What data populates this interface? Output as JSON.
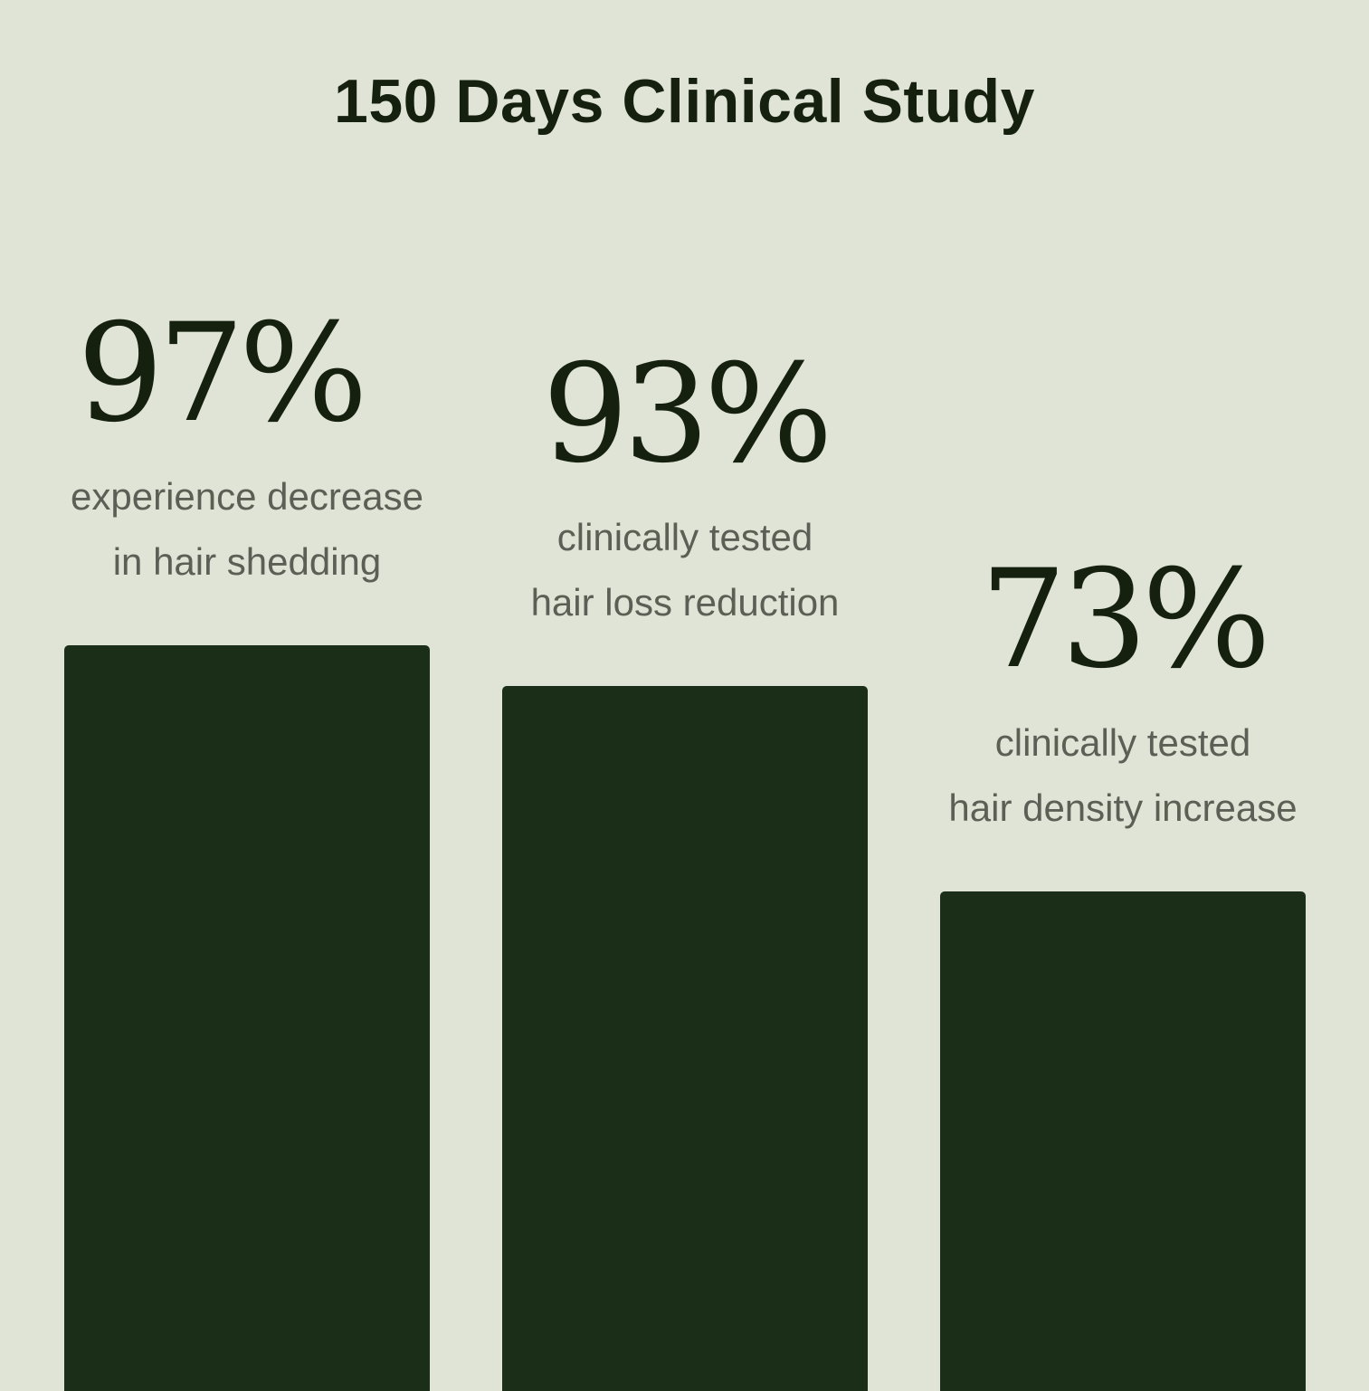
{
  "chart_data": {
    "type": "bar",
    "title": "150 Days Clinical Study",
    "categories": [
      [
        "experience decrease",
        "in hair shedding"
      ],
      [
        "clinically tested",
        "hair loss reduction"
      ],
      [
        "clinically tested",
        "hair density increase"
      ]
    ],
    "values": [
      97,
      93,
      73
    ],
    "value_labels": [
      "97%",
      "93%",
      "73%"
    ],
    "unit": "%",
    "bar_color": "#1a2e18",
    "background_color": "#dfe4d6",
    "grid": false,
    "legend": "none",
    "xlabel": "",
    "ylabel": "",
    "ylim": [
      0,
      100
    ]
  }
}
